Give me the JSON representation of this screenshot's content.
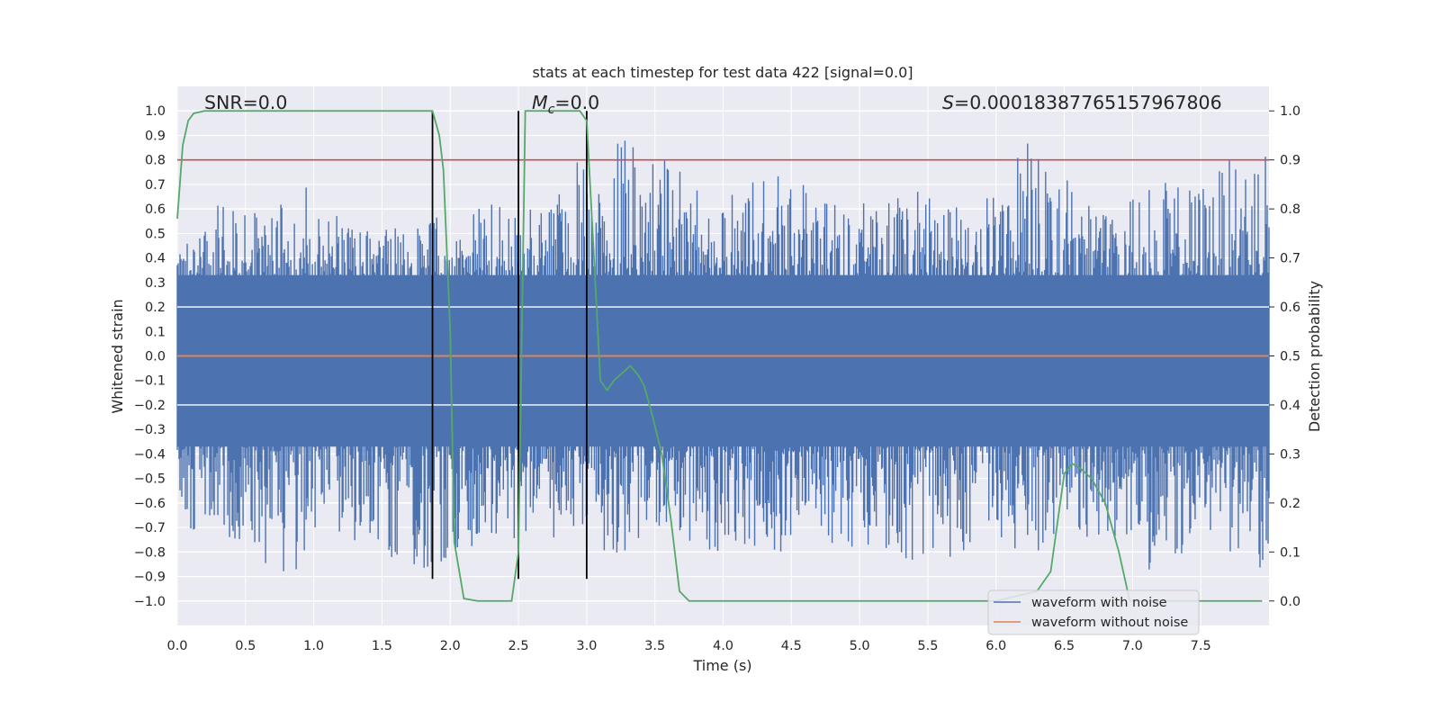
{
  "chart_data": {
    "type": "line",
    "title": "stats at each timestep for test data 422 [signal=0.0]",
    "xlabel": "Time (s)",
    "ylabel": "Whitened strain",
    "y2label": "Detection probability",
    "xlim": [
      0.0,
      8.0
    ],
    "ylim": [
      -1.1,
      1.1
    ],
    "y2lim": [
      -0.05,
      1.05
    ],
    "x_ticks": [
      "0.0",
      "0.5",
      "1.0",
      "1.5",
      "2.0",
      "2.5",
      "3.0",
      "3.5",
      "4.0",
      "4.5",
      "5.0",
      "5.5",
      "6.0",
      "6.5",
      "7.0",
      "7.5"
    ],
    "y_ticks": [
      "1.0",
      "0.9",
      "0.8",
      "0.7",
      "0.6",
      "0.5",
      "0.4",
      "0.3",
      "0.2",
      "0.1",
      "0.0",
      "−0.1",
      "−0.2",
      "−0.3",
      "−0.4",
      "−0.5",
      "−0.6",
      "−0.7",
      "−0.8",
      "−0.9",
      "−1.0"
    ],
    "y2_ticks": [
      "1.0",
      "0.9",
      "0.8",
      "0.7",
      "0.6",
      "0.5",
      "0.4",
      "0.3",
      "0.2",
      "0.1",
      "0.0"
    ],
    "grid": true,
    "legend_placement": "lower-right",
    "annotations": {
      "snr_text": "SNR=0.0",
      "mc_symbol": "M",
      "mc_sub": "c",
      "mc_value": "=0.0",
      "s_symbol": "S",
      "s_value": "=0.00018387765157967806"
    },
    "series": [
      {
        "name": "waveform with noise",
        "color": "#4c72b0",
        "axis": "left",
        "description_envelope_upper": [
          0.4,
          0.63,
          0.6,
          0.73,
          0.6,
          0.5,
          0.55,
          0.58,
          0.62,
          0.6,
          0.78,
          0.87,
          0.92,
          0.75,
          0.63,
          0.8,
          0.72,
          0.65,
          0.62,
          0.7,
          0.62,
          0.68,
          0.96,
          0.68,
          0.6,
          0.72,
          0.7,
          0.8,
          0.97
        ],
        "description_envelope_lower": [
          -0.7,
          -0.73,
          -0.85,
          -0.9,
          -0.75,
          -0.8,
          -0.92,
          -0.82,
          -0.75,
          -0.78,
          -0.72,
          -0.82,
          -0.78,
          -0.76,
          -0.84,
          -0.82,
          -0.79,
          -0.78,
          -0.8,
          -0.85,
          -0.82,
          -0.78,
          -0.8,
          -0.75,
          -0.78,
          -0.88,
          -0.8,
          -0.82,
          -0.88
        ]
      },
      {
        "name": "waveform without noise",
        "color": "#dd8452",
        "axis": "left",
        "x": [
          0.0,
          8.0
        ],
        "y": [
          0.0,
          0.0
        ]
      },
      {
        "color": "#55a868",
        "axis": "right",
        "x": [
          0.0,
          0.04,
          0.08,
          0.12,
          0.2,
          0.5,
          1.0,
          1.5,
          1.87,
          1.92,
          1.95,
          2.0,
          2.03,
          2.1,
          2.2,
          2.3,
          2.4,
          2.45,
          2.5,
          2.55,
          2.6,
          2.7,
          2.8,
          2.9,
          2.95,
          3.0,
          3.05,
          3.1,
          3.15,
          3.2,
          3.28,
          3.32,
          3.38,
          3.42,
          3.48,
          3.55,
          3.62,
          3.68,
          3.75,
          4.0,
          5.0,
          6.0,
          6.3,
          6.4,
          6.5,
          6.56,
          6.62,
          6.7,
          6.8,
          6.9,
          6.98,
          7.1,
          7.5,
          7.95
        ],
        "y": [
          0.78,
          0.93,
          0.98,
          0.995,
          1.0,
          1.0,
          1.0,
          1.0,
          1.0,
          0.95,
          0.88,
          0.55,
          0.12,
          0.005,
          0.0,
          0.0,
          0.0,
          0.0,
          0.1,
          1.0,
          1.0,
          1.0,
          1.0,
          1.0,
          1.0,
          0.98,
          0.72,
          0.45,
          0.43,
          0.45,
          0.47,
          0.48,
          0.46,
          0.44,
          0.38,
          0.3,
          0.16,
          0.02,
          0.0,
          0.0,
          0.0,
          0.0,
          0.02,
          0.06,
          0.26,
          0.28,
          0.27,
          0.25,
          0.2,
          0.1,
          0.0,
          0.0,
          0.0,
          0.0
        ]
      },
      {
        "color": "#c44e52",
        "axis": "right",
        "type": "hline",
        "y": 0.9
      },
      {
        "color": "#000000",
        "axis": "left",
        "type": "vlines",
        "x": [
          1.87,
          2.5,
          3.0
        ],
        "y_range": [
          -0.91,
          1.0
        ]
      }
    ]
  },
  "legend": {
    "items": [
      {
        "label": "waveform with noise",
        "color": "#4c72b0"
      },
      {
        "label": "waveform without noise",
        "color": "#dd8452"
      }
    ]
  }
}
